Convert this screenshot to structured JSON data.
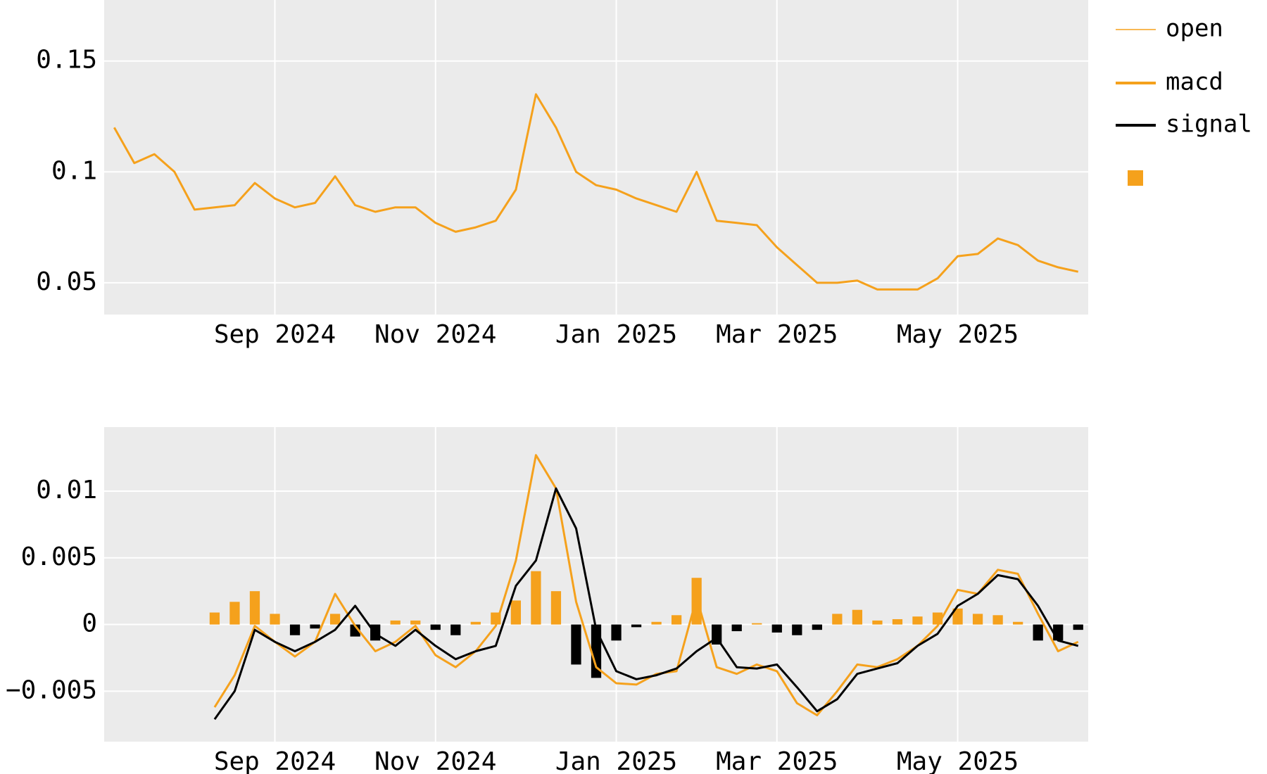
{
  "chart_data": [
    {
      "type": "line",
      "categories": [
        null,
        null,
        null,
        null,
        null,
        null,
        null,
        null,
        "Sep 2024",
        null,
        null,
        null,
        null,
        null,
        null,
        null,
        "Nov 2024",
        null,
        null,
        null,
        null,
        null,
        null,
        null,
        null,
        "Jan 2025",
        null,
        null,
        null,
        null,
        null,
        null,
        null,
        "Mar 2025",
        null,
        null,
        null,
        null,
        null,
        null,
        null,
        null,
        "May 2025",
        null,
        null,
        null,
        null,
        null,
        null
      ],
      "series": [
        {
          "name": "open",
          "color": "#f5a11c",
          "linewidth": 1,
          "values": [
            0.12,
            0.104,
            0.108,
            0.1,
            0.083,
            0.084,
            0.085,
            0.095,
            0.088,
            0.084,
            0.086,
            0.098,
            0.085,
            0.082,
            0.084,
            0.084,
            0.077,
            0.073,
            0.075,
            0.078,
            0.092,
            0.135,
            0.12,
            0.1,
            0.094,
            0.092,
            0.088,
            0.085,
            0.082,
            0.1,
            0.078,
            0.077,
            0.076,
            0.066,
            0.058,
            0.05,
            0.05,
            0.051,
            0.047,
            0.047,
            0.047,
            0.052,
            0.062,
            0.063,
            0.07,
            0.067,
            0.06,
            0.057,
            0.055
          ]
        }
      ],
      "ylim": [
        0.0357,
        0.1775
      ],
      "yticks": [
        0.05,
        0.1,
        0.15
      ],
      "grid": true,
      "legend": "right"
    },
    {
      "type": "line",
      "categories": [
        null,
        null,
        null,
        null,
        null,
        null,
        null,
        null,
        "Sep 2024",
        null,
        null,
        null,
        null,
        null,
        null,
        null,
        "Nov 2024",
        null,
        null,
        null,
        null,
        null,
        null,
        null,
        null,
        "Jan 2025",
        null,
        null,
        null,
        null,
        null,
        null,
        null,
        "Mar 2025",
        null,
        null,
        null,
        null,
        null,
        null,
        null,
        null,
        "May 2025",
        null,
        null,
        null,
        null,
        null,
        null
      ],
      "series": [
        {
          "name": "macd",
          "color": "#f5a11c",
          "linewidth": 3,
          "values": [
            null,
            null,
            null,
            null,
            null,
            -0.0062,
            -0.0038,
            -0.0001,
            -0.0013,
            -0.0024,
            -0.0013,
            0.0023,
            -0.0001,
            -0.002,
            -0.0013,
            -0.0001,
            -0.0023,
            -0.0032,
            -0.002,
            -0.0001,
            0.0048,
            0.0127,
            0.0102,
            0.0017,
            -0.0032,
            -0.0044,
            -0.0045,
            -0.0037,
            -0.0035,
            0.002,
            -0.0032,
            -0.0037,
            -0.003,
            -0.0035,
            -0.0059,
            -0.0068,
            -0.005,
            -0.003,
            -0.0032,
            -0.0026,
            -0.0016,
            -0.0001,
            0.0026,
            0.0023,
            0.0041,
            0.0038,
            0.0008,
            -0.002,
            -0.0013
          ]
        },
        {
          "name": "signal",
          "color": "#000000",
          "linewidth": 3,
          "values": [
            null,
            null,
            null,
            null,
            null,
            -0.0071,
            -0.005,
            -0.0004,
            -0.0013,
            -0.002,
            -0.0013,
            -0.0004,
            0.0014,
            -0.0007,
            -0.0016,
            -0.0004,
            -0.0016,
            -0.0026,
            -0.002,
            -0.0016,
            0.0029,
            0.0048,
            0.0102,
            0.0072,
            -0.0004,
            -0.0035,
            -0.0041,
            -0.0038,
            -0.0033,
            -0.002,
            -0.001,
            -0.0032,
            -0.0033,
            -0.003,
            -0.0047,
            -0.0065,
            -0.0056,
            -0.0037,
            -0.0033,
            -0.0029,
            -0.0016,
            -0.0007,
            0.0014,
            0.0023,
            0.0037,
            0.0034,
            0.0014,
            -0.0012,
            -0.0016
          ]
        },
        {
          "type": "bar",
          "color": "#f5a11c",
          "negative_color": "#000000",
          "values": [
            null,
            null,
            null,
            null,
            null,
            0.0009,
            0.0017,
            0.0025,
            0.0008,
            -0.0008,
            -0.0003,
            0.0008,
            -0.0009,
            -0.0012,
            0.0003,
            0.0003,
            -0.0004,
            -0.0008,
            0.0002,
            0.0009,
            0.0018,
            0.004,
            0.0025,
            -0.003,
            -0.004,
            -0.0012,
            -0.0002,
            0.0002,
            0.0007,
            0.0035,
            -0.0015,
            -0.0005,
            0.0001,
            -0.0006,
            -0.0008,
            -0.0004,
            0.0008,
            0.0011,
            0.0003,
            0.0004,
            0.0006,
            0.0009,
            0.0012,
            0.0008,
            0.0007,
            0.0002,
            -0.0012,
            -0.0012,
            -0.0004
          ]
        }
      ],
      "ylim": [
        -0.00878,
        0.0148
      ],
      "yticks": [
        {
          "value": -0.005,
          "label": "−0.005"
        },
        0,
        0.005,
        0.01
      ],
      "grid": true
    }
  ]
}
